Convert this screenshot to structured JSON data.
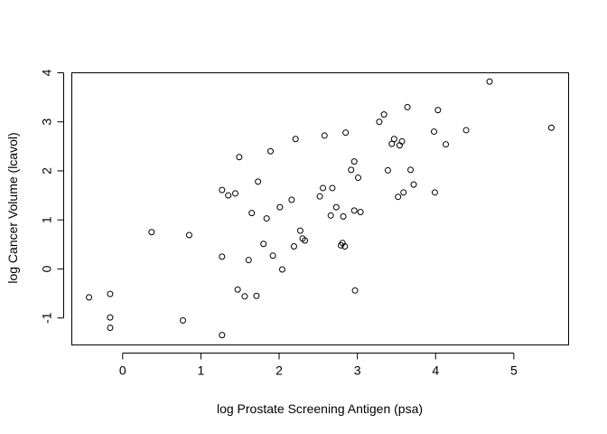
{
  "chart_data": {
    "type": "scatter",
    "title": "",
    "xlabel": "log Prostate Screening Antigen (psa)",
    "ylabel": "log Cancer Volume (lcavol)",
    "xlim": [
      -0.65,
      5.7
    ],
    "ylim": [
      -1.55,
      4.0
    ],
    "xticks": [
      0,
      1,
      2,
      3,
      4,
      5
    ],
    "yticks": [
      -1,
      0,
      1,
      2,
      3,
      4
    ],
    "grid": false,
    "legend": "none",
    "marker": "open-circle",
    "point_color": "#000000",
    "points": [
      {
        "x": -0.43,
        "y": -0.58
      },
      {
        "x": -0.16,
        "y": -0.99
      },
      {
        "x": -0.16,
        "y": -0.51
      },
      {
        "x": -0.16,
        "y": -1.2
      },
      {
        "x": 0.37,
        "y": 0.75
      },
      {
        "x": 0.77,
        "y": -1.05
      },
      {
        "x": 0.85,
        "y": 0.69
      },
      {
        "x": 1.27,
        "y": 1.61
      },
      {
        "x": 1.27,
        "y": 0.25
      },
      {
        "x": 1.27,
        "y": -1.35
      },
      {
        "x": 1.35,
        "y": 1.5
      },
      {
        "x": 1.44,
        "y": 1.54
      },
      {
        "x": 1.47,
        "y": -0.42
      },
      {
        "x": 1.49,
        "y": 2.28
      },
      {
        "x": 1.56,
        "y": -0.56
      },
      {
        "x": 1.61,
        "y": 0.18
      },
      {
        "x": 1.65,
        "y": 1.14
      },
      {
        "x": 1.71,
        "y": -0.55
      },
      {
        "x": 1.73,
        "y": 1.78
      },
      {
        "x": 1.8,
        "y": 0.51
      },
      {
        "x": 1.84,
        "y": 1.03
      },
      {
        "x": 1.89,
        "y": 2.4
      },
      {
        "x": 1.92,
        "y": 0.27
      },
      {
        "x": 2.01,
        "y": 1.26
      },
      {
        "x": 2.04,
        "y": -0.01
      },
      {
        "x": 2.16,
        "y": 1.41
      },
      {
        "x": 2.19,
        "y": 0.46
      },
      {
        "x": 2.21,
        "y": 2.65
      },
      {
        "x": 2.27,
        "y": 0.78
      },
      {
        "x": 2.3,
        "y": 0.62
      },
      {
        "x": 2.33,
        "y": 0.58
      },
      {
        "x": 2.52,
        "y": 1.48
      },
      {
        "x": 2.56,
        "y": 1.65
      },
      {
        "x": 2.58,
        "y": 2.72
      },
      {
        "x": 2.66,
        "y": 1.09
      },
      {
        "x": 2.68,
        "y": 1.65
      },
      {
        "x": 2.73,
        "y": 1.26
      },
      {
        "x": 2.79,
        "y": 0.48
      },
      {
        "x": 2.81,
        "y": 0.53
      },
      {
        "x": 2.82,
        "y": 1.07
      },
      {
        "x": 2.84,
        "y": 0.46
      },
      {
        "x": 2.85,
        "y": 2.78
      },
      {
        "x": 2.92,
        "y": 2.02
      },
      {
        "x": 2.96,
        "y": 2.19
      },
      {
        "x": 2.96,
        "y": 1.19
      },
      {
        "x": 2.97,
        "y": -0.44
      },
      {
        "x": 3.01,
        "y": 1.86
      },
      {
        "x": 3.04,
        "y": 1.16
      },
      {
        "x": 3.28,
        "y": 3.0
      },
      {
        "x": 3.34,
        "y": 3.15
      },
      {
        "x": 3.39,
        "y": 2.01
      },
      {
        "x": 3.44,
        "y": 2.55
      },
      {
        "x": 3.47,
        "y": 2.65
      },
      {
        "x": 3.52,
        "y": 1.47
      },
      {
        "x": 3.54,
        "y": 2.52
      },
      {
        "x": 3.57,
        "y": 2.6
      },
      {
        "x": 3.59,
        "y": 1.56
      },
      {
        "x": 3.64,
        "y": 3.3
      },
      {
        "x": 3.68,
        "y": 2.02
      },
      {
        "x": 3.72,
        "y": 1.72
      },
      {
        "x": 3.98,
        "y": 2.8
      },
      {
        "x": 3.99,
        "y": 1.56
      },
      {
        "x": 4.03,
        "y": 3.24
      },
      {
        "x": 4.13,
        "y": 2.54
      },
      {
        "x": 4.39,
        "y": 2.83
      },
      {
        "x": 4.69,
        "y": 3.82
      },
      {
        "x": 5.48,
        "y": 2.88
      }
    ]
  }
}
